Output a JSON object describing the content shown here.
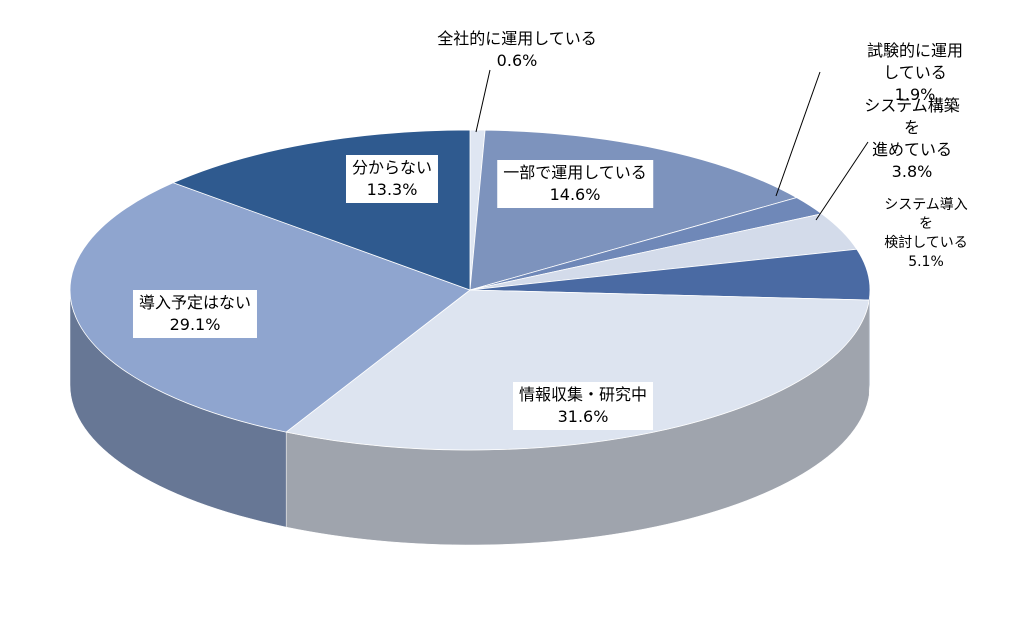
{
  "chart_data": {
    "type": "pie",
    "categories": [
      "全社的に運用している",
      "一部で運用している",
      "試験的に運用している",
      "システム構築を\n進めている",
      "システム導入を\n検討している",
      "情報収集・研究中",
      "導入予定はない",
      "分からない"
    ],
    "values": [
      0.6,
      14.6,
      1.9,
      3.8,
      5.1,
      31.6,
      29.1,
      13.3
    ],
    "value_labels": [
      "0.6%",
      "14.6%",
      "1.9%",
      "3.8%",
      "5.1%",
      "31.6%",
      "29.1%",
      "13.3%"
    ],
    "colors": [
      "#dfe6f2",
      "#7d93bd",
      "#6f88b8",
      "#d3dbea",
      "#4a6aa3",
      "#dde4f0",
      "#8fa5cf",
      "#2f5a8f"
    ]
  }
}
